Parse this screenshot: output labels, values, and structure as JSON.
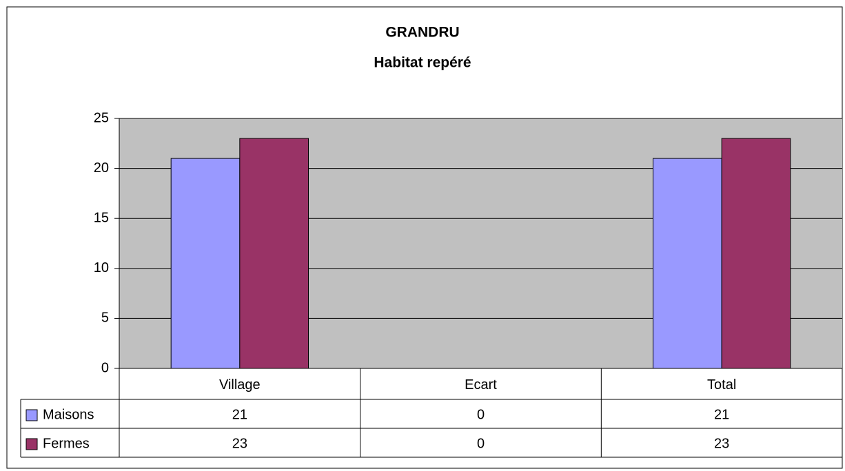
{
  "chart_data": {
    "type": "bar",
    "title": "GRANDRU",
    "subtitle": "Habitat repéré",
    "categories": [
      "Village",
      "Ecart",
      "Total"
    ],
    "series": [
      {
        "name": "Maisons",
        "color": "#9999ff",
        "values": [
          21,
          0,
          21
        ]
      },
      {
        "name": "Fermes",
        "color": "#993366",
        "values": [
          23,
          0,
          23
        ]
      }
    ],
    "ylim": [
      0,
      25
    ],
    "yticks": [
      0,
      5,
      10,
      15,
      20,
      25
    ],
    "grid": true,
    "data_table": true
  }
}
